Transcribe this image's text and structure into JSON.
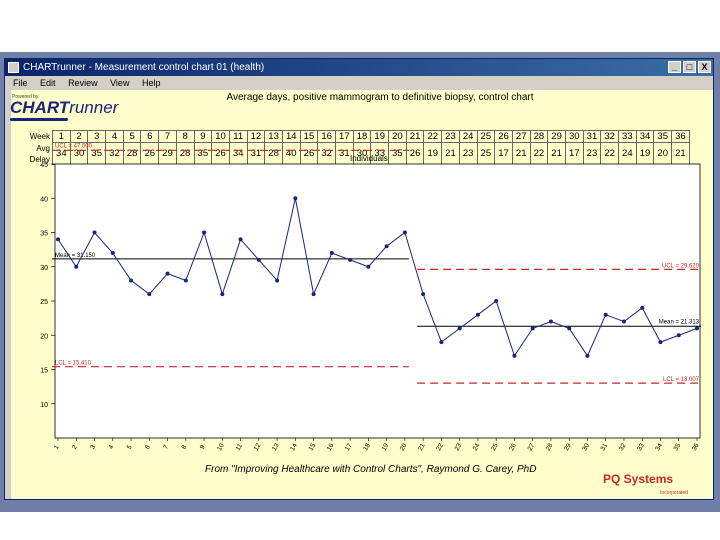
{
  "window": {
    "title": "CHARTrunner - Measurement control chart 01 (health)",
    "controls": {
      "minimize": "_",
      "maximize": "□",
      "close": "X"
    }
  },
  "menu": {
    "items": [
      "File",
      "Edit",
      "Review",
      "View",
      "Help"
    ]
  },
  "logo": {
    "tm": "Powered by",
    "name_bold": "CHART",
    "name_rest": "runner"
  },
  "chart_title": "Average days, positive mammogram to definitive biopsy, control chart",
  "table": {
    "row1_label": "Week",
    "row2_label": "Avg Delay",
    "weeks": [
      "1",
      "2",
      "3",
      "4",
      "5",
      "6",
      "7",
      "8",
      "9",
      "10",
      "11",
      "12",
      "13",
      "14",
      "15",
      "16",
      "17",
      "18",
      "19",
      "20",
      "21",
      "22",
      "23",
      "24",
      "25",
      "26",
      "27",
      "28",
      "29",
      "30",
      "31",
      "32",
      "33",
      "34",
      "35",
      "36"
    ],
    "delays": [
      "34",
      "30",
      "35",
      "32",
      "28",
      "26",
      "29",
      "28",
      "35",
      "26",
      "34",
      "31",
      "28",
      "40",
      "26",
      "32",
      "31",
      "30",
      "33",
      "35",
      "26",
      "19",
      "21",
      "23",
      "25",
      "17",
      "21",
      "22",
      "21",
      "17",
      "23",
      "22",
      "24",
      "19",
      "20",
      "21"
    ]
  },
  "subtitle": "Individuals",
  "footer": "From \"Improving Healthcare with Control Charts\", Raymond G. Carey, PhD",
  "brand": "PQ Systems",
  "brand_sub": "Incorporated",
  "chart_data": {
    "type": "line",
    "x": [
      1,
      2,
      3,
      4,
      5,
      6,
      7,
      8,
      9,
      10,
      11,
      12,
      13,
      14,
      15,
      16,
      17,
      18,
      19,
      20,
      21,
      22,
      23,
      24,
      25,
      26,
      27,
      28,
      29,
      30,
      31,
      32,
      33,
      34,
      35,
      36
    ],
    "values": [
      34,
      30,
      35,
      32,
      28,
      26,
      29,
      28,
      35,
      26,
      34,
      31,
      28,
      40,
      26,
      32,
      31,
      30,
      33,
      35,
      26,
      19,
      21,
      23,
      25,
      17,
      21,
      22,
      21,
      17,
      23,
      22,
      24,
      19,
      20,
      21
    ],
    "ylim": [
      5,
      45
    ],
    "yticks": [
      10,
      15,
      20,
      25,
      30,
      35,
      40,
      45
    ],
    "phase1": {
      "range": [
        1,
        20
      ],
      "mean": 31.15,
      "ucl": 47.0,
      "lcl": 15.41,
      "mean_label": "Mean = 31.150",
      "ucl_label": "UCL = 47.000",
      "lcl_label": "LCL = 15.410"
    },
    "phase2": {
      "range": [
        21,
        36
      ],
      "mean": 21.313,
      "ucl": 29.62,
      "lcl": 13.007,
      "mean_label": "Mean = 21.313",
      "ucl_label": "UCL = 29.620",
      "lcl_label": "LCL = 13.007"
    },
    "colors": {
      "series": "#1a237e",
      "limits": "#c62828",
      "mean": "#000000"
    }
  }
}
